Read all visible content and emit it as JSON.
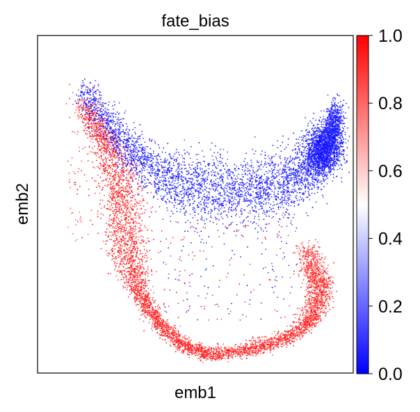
{
  "chart_data": {
    "type": "scatter",
    "title": "fate_bias",
    "xlabel": "emb1",
    "ylabel": "emb2",
    "grid": false,
    "xticks": [],
    "yticks": [],
    "legend": "none",
    "colorbar": {
      "position": "right",
      "min": 0.0,
      "max": 1.0,
      "ticks": [
        0.0,
        0.2,
        0.4,
        0.6,
        0.8,
        1.0
      ],
      "tick_labels": [
        "0.0",
        "0.2",
        "0.4",
        "0.6",
        "0.8",
        "1.0"
      ],
      "colormap": "bwr",
      "low_color": "#0000ff",
      "mid_color": "#ffffff",
      "high_color": "#ff0000"
    },
    "frame_color": "#000000"
  }
}
